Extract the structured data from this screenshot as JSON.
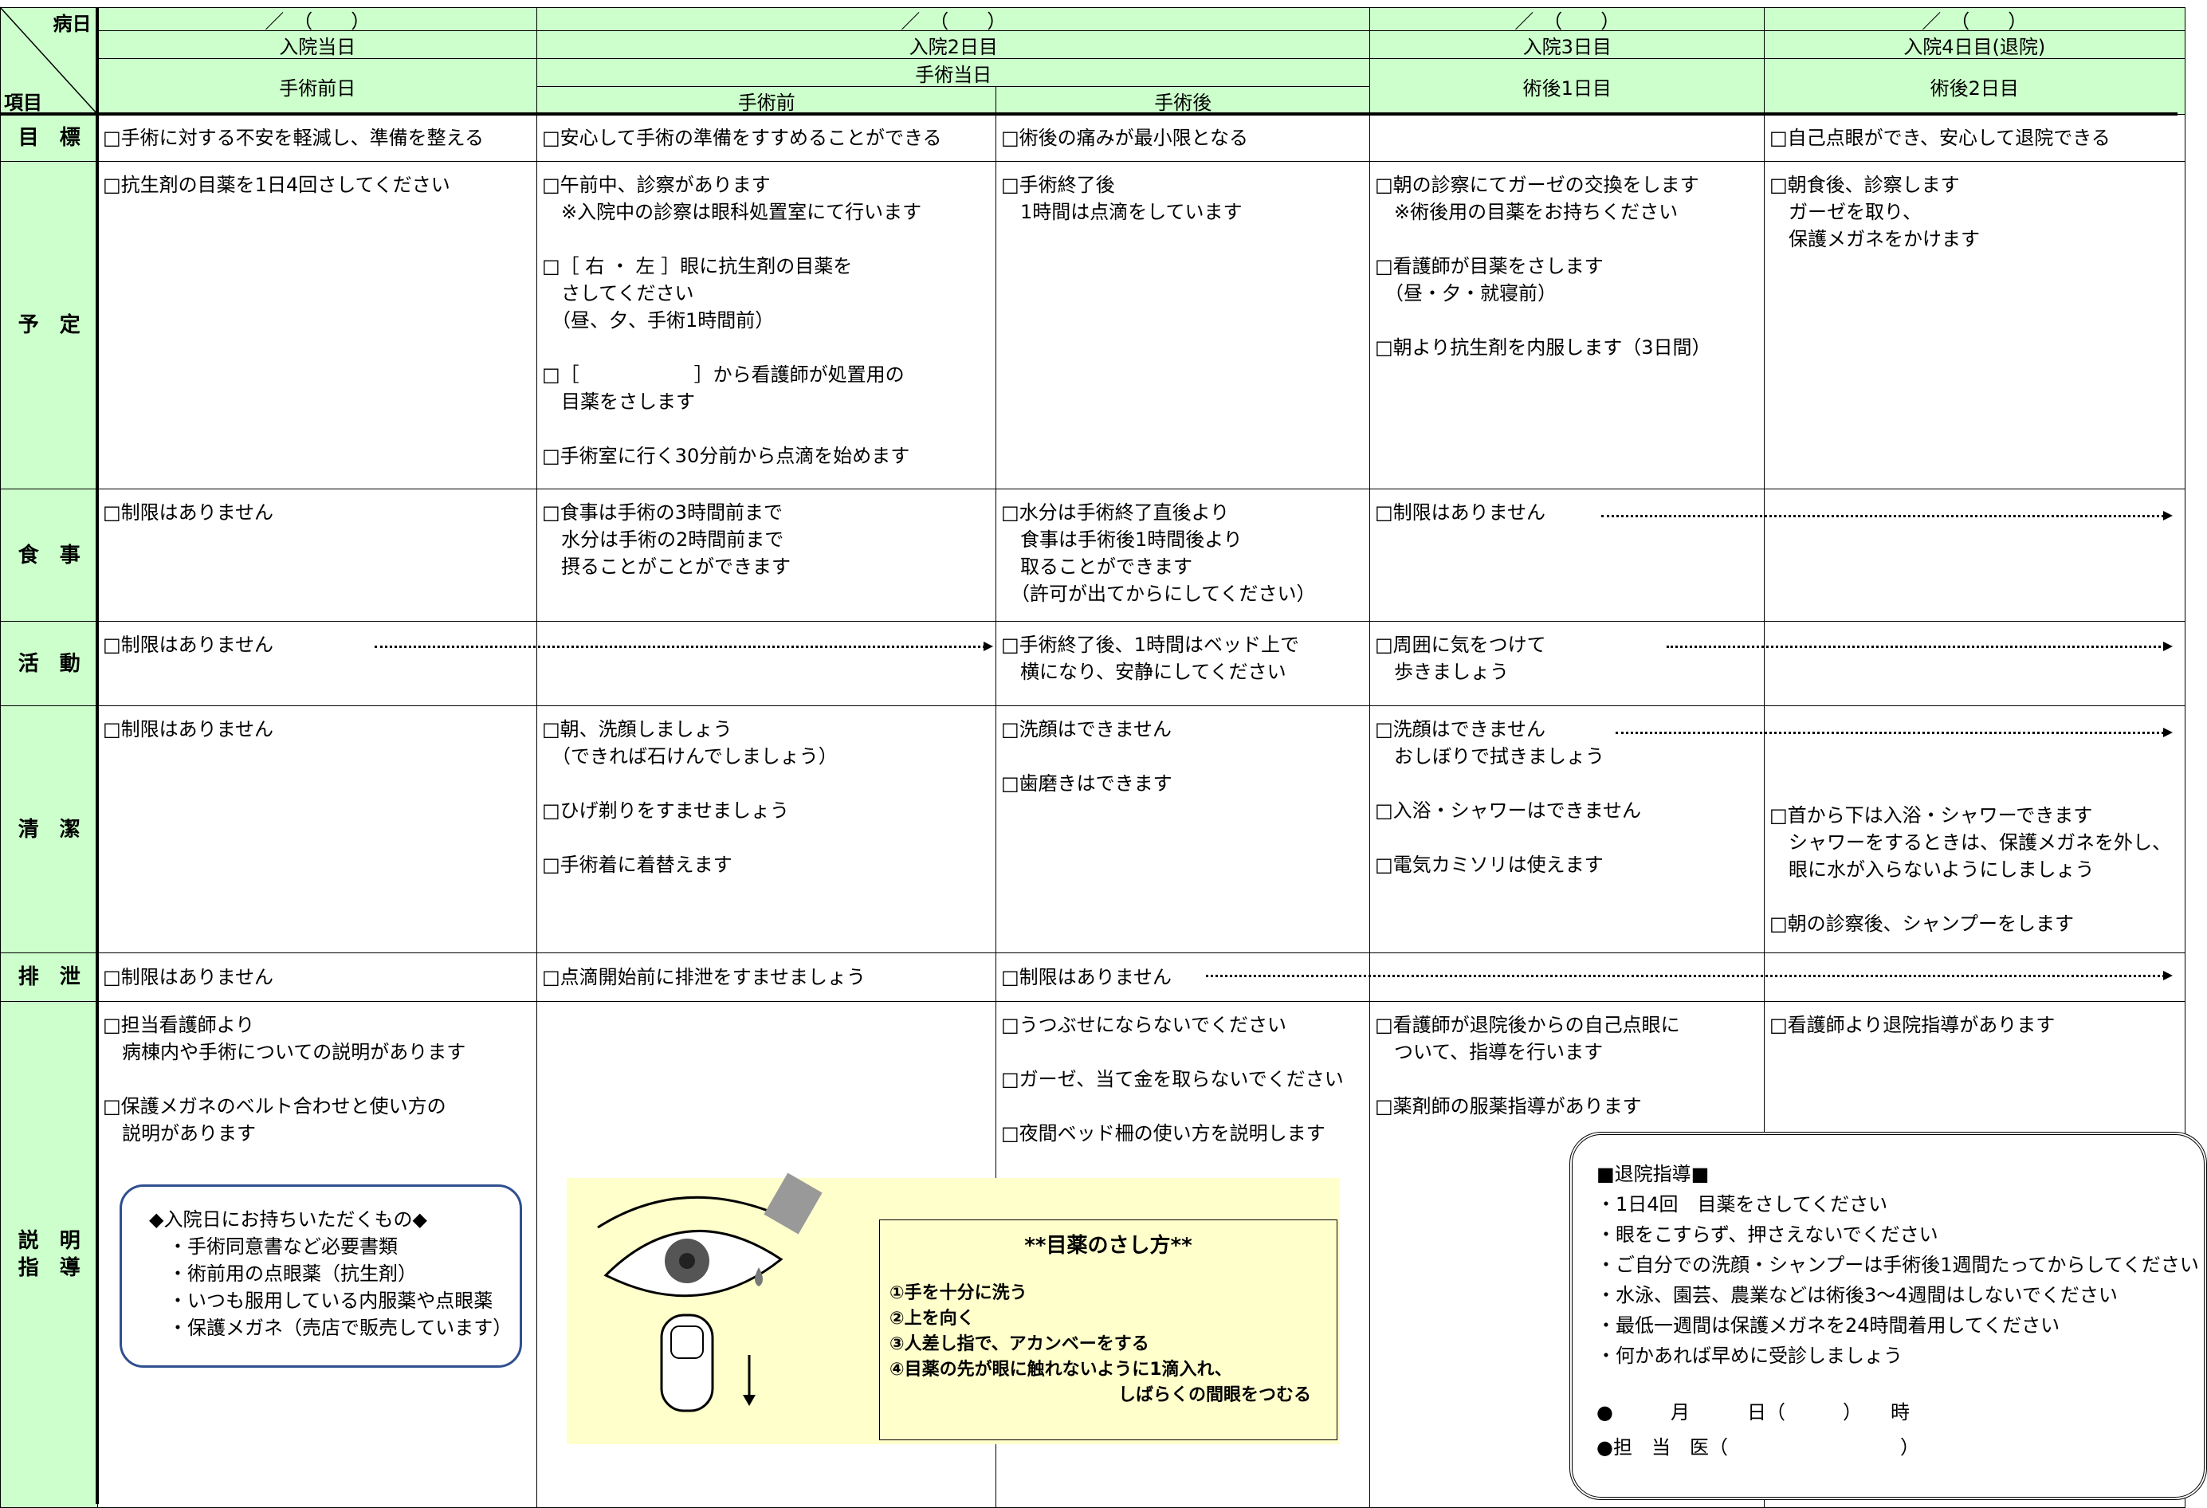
{
  "header": {
    "corner": {
      "top": "病日",
      "bottom": "項目"
    },
    "dates": [
      "／　（　　）",
      "／　（　　）",
      "／　（　　）",
      "／　（　　）"
    ],
    "days": [
      "入院当日",
      "入院2日目",
      "入院3日目",
      "入院4日目(退院)"
    ],
    "stages": {
      "day0": "手術前日",
      "surgery_day": "手術当日",
      "before": "手術前",
      "after": "手術後",
      "post1": "術後1日目",
      "post2": "術後2日目"
    }
  },
  "rows": [
    {
      "label": [
        "目　標"
      ],
      "cells": [
        [
          [
            "□手術に対する不安を軽減し、準備を整える"
          ]
        ],
        [
          [
            "□安心して手術の準備をすすめることができる"
          ]
        ],
        [
          [
            "□術後の痛みが最小限となる"
          ]
        ],
        [],
        [
          [
            "□自己点眼ができ、安心して退院できる"
          ]
        ]
      ]
    },
    {
      "label": [
        "予　定"
      ],
      "cells": [
        [
          [
            "□抗生剤の目薬を1日4回さしてください"
          ]
        ],
        [
          [
            "□午前中、診察があります",
            "　※入院中の診察は眼科処置室にて行います"
          ],
          [
            "□［ 右 ・ 左 ］眼に抗生剤の目薬を",
            "　さしてください",
            "　（昼、夕、手術1時間前）"
          ],
          [
            "□［　　　　　　］から看護師が処置用の",
            "　目薬をさします"
          ],
          [
            "□手術室に行く30分前から点滴を始めます"
          ]
        ],
        [
          [
            "□手術終了後",
            "　1時間は点滴をしています"
          ]
        ],
        [
          [
            "□朝の診察にてガーゼの交換をします",
            "　※術後用の目薬をお持ちください"
          ],
          [
            "□看護師が目薬をさします",
            "　（昼・夕・就寝前）"
          ],
          [
            "□朝より抗生剤を内服します（3日間）"
          ]
        ],
        [
          [
            "□朝食後、診察します",
            "　ガーゼを取り、",
            "　保護メガネをかけます"
          ]
        ]
      ]
    },
    {
      "label": [
        "食　事"
      ],
      "cells": [
        [
          [
            "□制限はありません"
          ]
        ],
        [
          [
            "□食事は手術の3時間前まで",
            "　水分は手術の2時間前まで",
            "　摂ることがことができます"
          ]
        ],
        [
          [
            "□水分は手術終了直後より",
            "　食事は手術後1時間後より",
            "　取ることができます",
            "　（許可が出てからにしてください）"
          ]
        ],
        [
          [
            "□制限はありません"
          ]
        ],
        []
      ]
    },
    {
      "label": [
        "活　動"
      ],
      "cells": [
        [
          [
            "□制限はありません"
          ]
        ],
        [],
        [
          [
            "□手術終了後、1時間はベッド上で",
            "　横になり、安静にしてください"
          ]
        ],
        [
          [
            "□周囲に気をつけて",
            "　歩きましょう"
          ]
        ],
        []
      ]
    },
    {
      "label": [
        "清　潔"
      ],
      "cells": [
        [
          [
            "□制限はありません"
          ]
        ],
        [
          [
            "□朝、洗顔しましょう",
            "　（できれば石けんでしましょう）"
          ],
          [
            "□ひげ剃りをすませましょう"
          ],
          [
            "□手術着に着替えます"
          ]
        ],
        [
          [
            "□洗顔はできません"
          ],
          [
            "□歯磨きはできます"
          ]
        ],
        [
          [
            "□洗顔はできません",
            "　おしぼりで拭きましょう"
          ],
          [
            "□入浴・シャワーはできません"
          ],
          [
            "□電気カミソリは使えます"
          ]
        ],
        [
          [
            "□首から下は入浴・シャワーできます",
            "　シャワーをするときは、保護メガネを外し、",
            "　眼に水が入らないようにしましょう"
          ],
          [
            "□朝の診察後、シャンプーをします"
          ]
        ]
      ]
    },
    {
      "label": [
        "排　泄"
      ],
      "cells": [
        [
          [
            "□制限はありません"
          ]
        ],
        [
          [
            "□点滴開始前に排泄をすませましょう"
          ]
        ],
        [
          [
            "□制限はありません"
          ]
        ],
        [],
        []
      ]
    },
    {
      "label": [
        "説　明",
        "指　導"
      ],
      "cells": [
        [
          [
            "□担当看護師より",
            "　病棟内や手術についての説明があります"
          ],
          [
            "□保護メガネのベルト合わせと使い方の",
            "　説明があります"
          ]
        ],
        [],
        [
          [
            "□うつぶせにならないでください"
          ],
          [
            "□ガーゼ、当て金を取らないでください"
          ],
          [
            "□夜間ベッド柵の使い方を説明します"
          ]
        ],
        [
          [
            "□看護師が退院後からの自己点眼に",
            "　ついて、指導を行います"
          ],
          [
            "□薬剤師の服薬指導があります"
          ]
        ],
        [
          [
            "□看護師より退院指導があります"
          ]
        ]
      ]
    }
  ],
  "bring_box": {
    "title": "◆入院日にお持ちいただくもの◆",
    "items": [
      "・手術同意書など必要書類",
      "・術前用の点眼薬（抗生剤）",
      "・いつも服用している内服薬や点眼薬",
      "・保護メガネ（売店で販売しています）"
    ]
  },
  "eyedrop_box": {
    "title": "**目薬のさし方**",
    "steps": [
      "①手を十分に洗う",
      "②上を向く",
      "③人差し指で、アカンベーをする",
      "④目薬の先が眼に触れないように1滴入れ、"
    ],
    "last": "しばらくの間眼をつむる"
  },
  "discharge_box": {
    "title": "■退院指導■",
    "items": [
      "・1日4回　目薬をさしてください",
      "・眼をこすらず、押さえないでください",
      "・ご自分での洗顔・シャンプーは手術後1週間たってからしてください",
      "・水泳、園芸、農業などは術後3～4週間はしないでください",
      "・最低一週間は保護メガネを24時間着用してください",
      "・何かあれば早めに受診しましょう"
    ],
    "appointment": [
      "●　　　月　　　日（　　　）　　時",
      "●担　当　医（　　　　　　　　　）"
    ]
  }
}
